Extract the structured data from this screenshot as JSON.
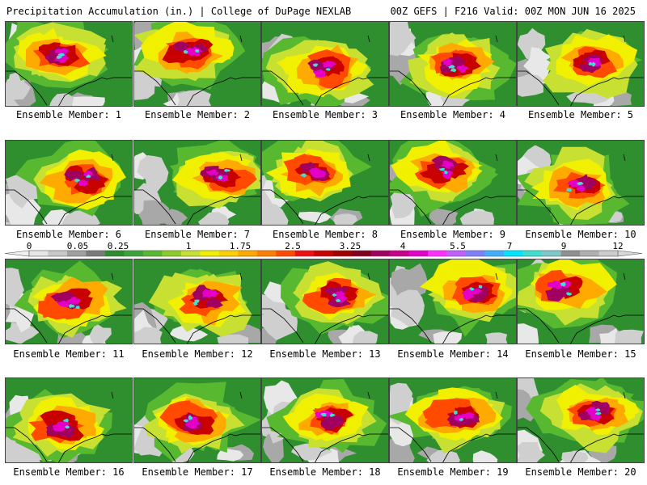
{
  "header": {
    "title_left": "Precipitation Accumulation (in.) | College of DuPage NEXLAB",
    "title_right": "00Z GEFS | F216 Valid: 00Z MON JUN 16 2025"
  },
  "panels": [
    {
      "label": "Ensemble Member: 1"
    },
    {
      "label": "Ensemble Member: 2"
    },
    {
      "label": "Ensemble Member: 3"
    },
    {
      "label": "Ensemble Member: 4"
    },
    {
      "label": "Ensemble Member: 5"
    },
    {
      "label": "Ensemble Member: 6"
    },
    {
      "label": "Ensemble Member: 7"
    },
    {
      "label": "Ensemble Member: 8"
    },
    {
      "label": "Ensemble Member: 9"
    },
    {
      "label": "Ensemble Member: 10"
    },
    {
      "label": "Ensemble Member: 11"
    },
    {
      "label": "Ensemble Member: 12"
    },
    {
      "label": "Ensemble Member: 13"
    },
    {
      "label": "Ensemble Member: 14"
    },
    {
      "label": "Ensemble Member: 15"
    },
    {
      "label": "Ensemble Member: 16"
    },
    {
      "label": "Ensemble Member: 17"
    },
    {
      "label": "Ensemble Member: 18"
    },
    {
      "label": "Ensemble Member: 19"
    },
    {
      "label": "Ensemble Member: 20"
    }
  ],
  "colorbar": {
    "tick_labels": [
      "0",
      "0.05",
      "0.25",
      "1",
      "1.75",
      "2.5",
      "3.25",
      "4",
      "5.5",
      "7",
      "9",
      "12"
    ],
    "colors": [
      "#e6e6e6",
      "#c8c8c8",
      "#a0a0a0",
      "#7a7a7a",
      "#2e8b2e",
      "#3ca23c",
      "#58b830",
      "#8ccc2a",
      "#c8e032",
      "#f0f000",
      "#ffd000",
      "#ffaa00",
      "#ff8000",
      "#ff4a00",
      "#ee1010",
      "#c80000",
      "#a00000",
      "#800020",
      "#a00060",
      "#c8008c",
      "#e400c8",
      "#ff30ff",
      "#c060ff",
      "#8080ff",
      "#40b0ff",
      "#00e6ff",
      "#40e0d0",
      "#80c8c8",
      "#909090",
      "#b0b0b0",
      "#cccccc"
    ]
  }
}
